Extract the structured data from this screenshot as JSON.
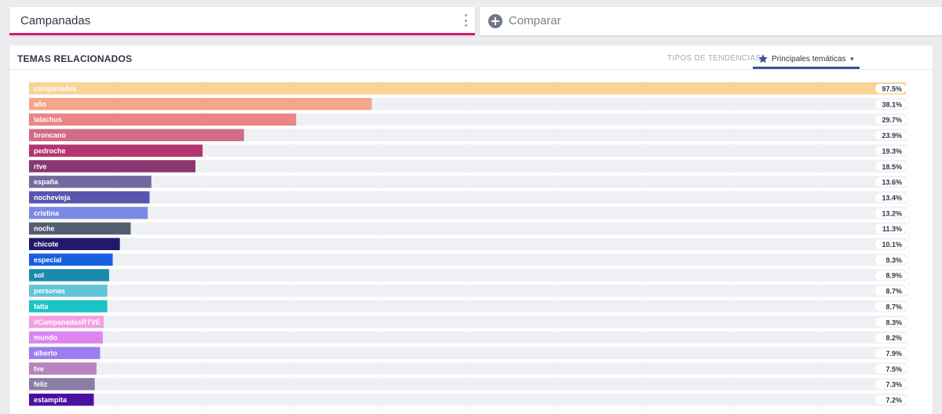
{
  "search": {
    "term": "Campanadas"
  },
  "compare": {
    "label": "Comparar"
  },
  "panel": {
    "title": "TEMAS RELACIONADOS",
    "tabs": [
      {
        "label": "TIPOS DE TENDENCIAS",
        "active": false
      },
      {
        "label": "Principales temáticas",
        "active": true
      }
    ]
  },
  "colors": {
    "accent": "#d8196b",
    "tab_active": "#3c4f9a",
    "track": "#eef0f3"
  },
  "icons": [
    "kebab-menu-icon",
    "plus-circle-icon",
    "star-icon",
    "caret-down-icon"
  ],
  "chart_data": {
    "type": "bar",
    "orientation": "horizontal",
    "xlim": [
      0,
      100
    ],
    "grid": true,
    "categories": [
      "campanadas",
      "año",
      "lalachus",
      "broncano",
      "pedroche",
      "rtve",
      "españa",
      "nochevieja",
      "cristina",
      "noche",
      "chicote",
      "especial",
      "sol",
      "personas",
      "falta",
      "#CampanadasRTVE",
      "mundo",
      "alberto",
      "tve",
      "feliz",
      "estampita"
    ],
    "values": [
      97.5,
      38.1,
      29.7,
      23.9,
      19.3,
      18.5,
      13.6,
      13.4,
      13.2,
      11.3,
      10.1,
      9.3,
      8.9,
      8.7,
      8.7,
      8.3,
      8.2,
      7.9,
      7.5,
      7.3,
      7.2
    ],
    "labels": [
      "97.5%",
      "38.1%",
      "29.7%",
      "23.9%",
      "19.3%",
      "18.5%",
      "13.6%",
      "13.4%",
      "13.2%",
      "11.3%",
      "10.1%",
      "9.3%",
      "8.9%",
      "8.7%",
      "8.7%",
      "8.3%",
      "8.2%",
      "7.9%",
      "7.5%",
      "7.3%",
      "7.2%"
    ],
    "colors": [
      "#f8d495",
      "#f2a788",
      "#ea8584",
      "#d16b86",
      "#b3356f",
      "#8a3671",
      "#72699f",
      "#5956b0",
      "#7b89e6",
      "#545d72",
      "#22196a",
      "#165fe0",
      "#1a8bad",
      "#61c4d9",
      "#1ac4c4",
      "#f39fe0",
      "#dc86ef",
      "#9a7ef0",
      "#b883c0",
      "#8b7ea6",
      "#4a11a0"
    ]
  }
}
